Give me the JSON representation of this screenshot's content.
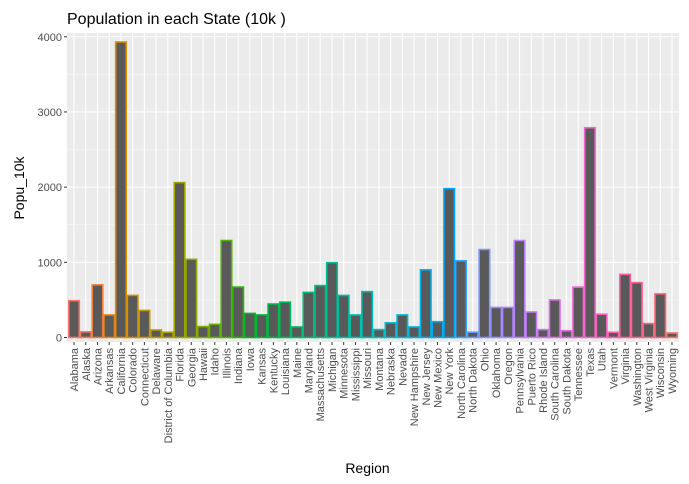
{
  "chart_data": {
    "type": "bar",
    "title": "Population in each State (10k )",
    "xlabel": "Region",
    "ylabel": "Popu_10k",
    "ylim": [
      -60,
      4050
    ],
    "yticks": [
      0,
      1000,
      2000,
      3000,
      4000
    ],
    "grid": true,
    "legend": "none",
    "categories": [
      "Alabama",
      "Alaska",
      "Arizona",
      "Arkansas",
      "California",
      "Colorado",
      "Connecticut",
      "Delaware",
      "District of Columbia",
      "Florida",
      "Georgia",
      "Hawaii",
      "Idaho",
      "Illinois",
      "Indiana",
      "Iowa",
      "Kansas",
      "Kentucky",
      "Louisiana",
      "Maine",
      "Maryland",
      "Massachusetts",
      "Michigan",
      "Minnesota",
      "Mississippi",
      "Missouri",
      "Montana",
      "Nebraska",
      "Nevada",
      "New Hampshire",
      "New Jersey",
      "New Mexico",
      "New York",
      "North Carolina",
      "North Dakota",
      "Ohio",
      "Oklahoma",
      "Oregon",
      "Pennsylvania",
      "Puerto Rico",
      "Rhode Island",
      "South Carolina",
      "South Dakota",
      "Tennessee",
      "Texas",
      "Utah",
      "Vermont",
      "Virginia",
      "Washington",
      "West Virginia",
      "Wisconsin",
      "Wyoming"
    ],
    "values": [
      490,
      75,
      700,
      300,
      3930,
      560,
      360,
      100,
      70,
      2060,
      1040,
      145,
      175,
      1290,
      670,
      320,
      300,
      445,
      470,
      140,
      600,
      690,
      995,
      560,
      300,
      610,
      105,
      195,
      300,
      140,
      900,
      210,
      1980,
      1020,
      70,
      1170,
      400,
      400,
      1290,
      340,
      105,
      500,
      90,
      670,
      2790,
      310,
      70,
      840,
      730,
      185,
      580,
      60
    ],
    "bar_fill": "#595959",
    "outline_colors": [
      "#F8766D",
      "#F47A5A",
      "#EE7F3E",
      "#E7851E",
      "#DE8C00",
      "#D39200",
      "#C89800",
      "#BB9D00",
      "#AEA200",
      "#9FA600",
      "#8FAA00",
      "#7DAE00",
      "#69B100",
      "#51B400",
      "#2CB600",
      "#00B81F",
      "#00BA38",
      "#00BB4B",
      "#00BC5C",
      "#00BD6C",
      "#00BE7A",
      "#00BF88",
      "#00C095",
      "#00C0A2",
      "#00C0AE",
      "#00C0BA",
      "#00BFC4",
      "#00BDD0",
      "#00BADA",
      "#00B7E4",
      "#00B3ED",
      "#00AEF6",
      "#00A9FF",
      "#35A2FF",
      "#619CFF",
      "#7F96FF",
      "#968FFF",
      "#AA88FF",
      "#BA82FA",
      "#C77CFF",
      "#D474F5",
      "#DF70EB",
      "#E86BE1",
      "#EF67D6",
      "#F564CA",
      "#F962BE",
      "#FC61B1",
      "#FE61A3",
      "#FF6195",
      "#FE6386",
      "#FC6677",
      "#F8766D"
    ]
  }
}
